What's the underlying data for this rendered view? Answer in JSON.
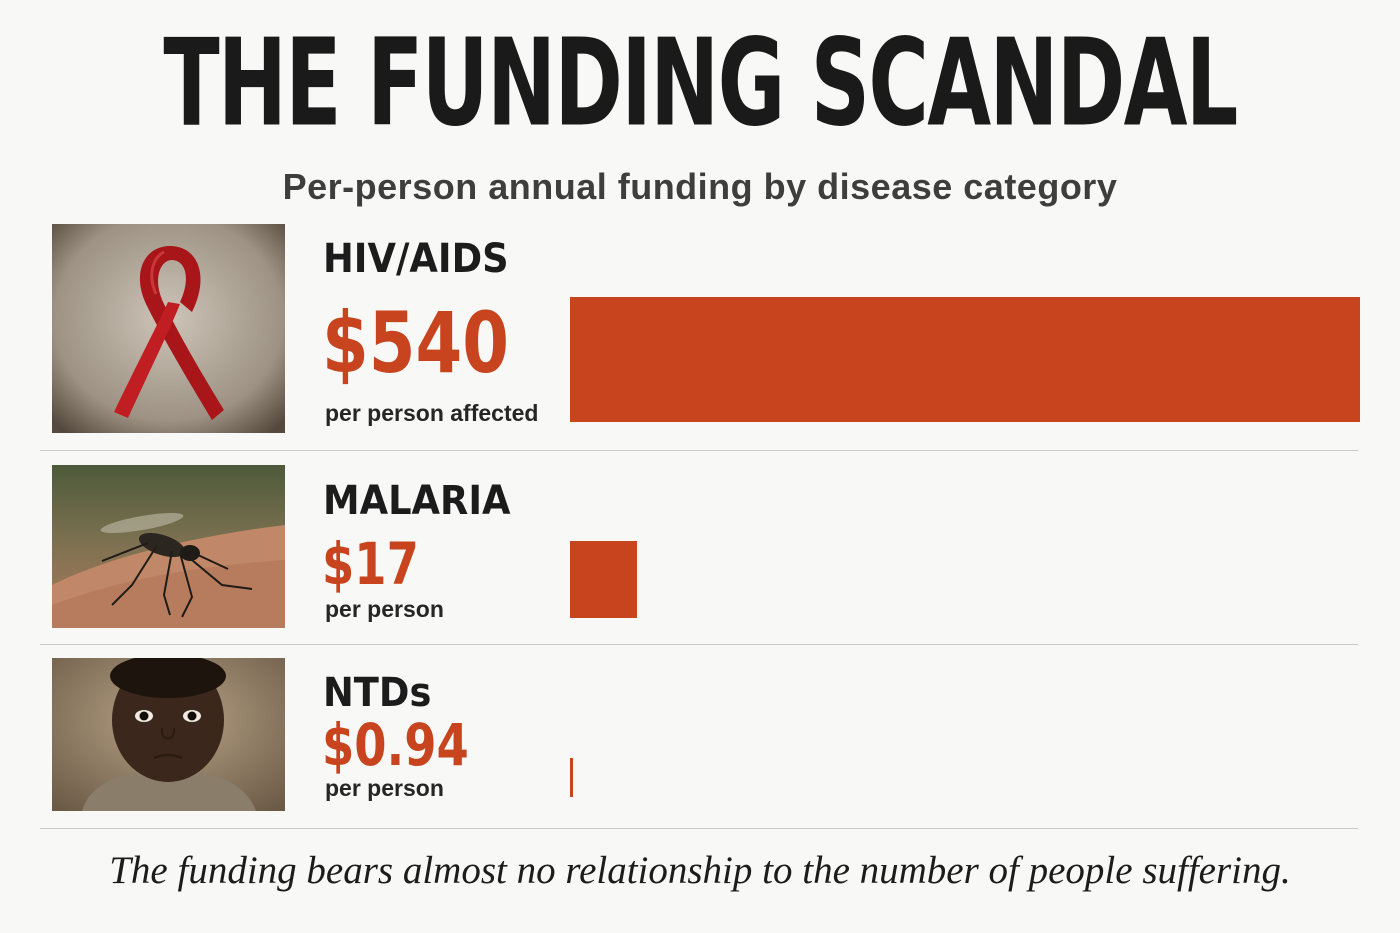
{
  "title": "THE FUNDING SCANDAL",
  "subtitle": "Per-person annual funding by disease category",
  "caption": "The funding bears almost no relationship to the number of people suffering.",
  "colors": {
    "bar": "#c8441e",
    "value_text": "#c8441e"
  },
  "chart_data": {
    "type": "bar",
    "orientation": "horizontal",
    "categories": [
      "HIV/AIDS",
      "MALARIA",
      "NTDs"
    ],
    "values": [
      540,
      17,
      0.94
    ],
    "value_labels": [
      "$540",
      "$17",
      "$0.94"
    ],
    "unit_labels": [
      "per person affected",
      "per person",
      "per person"
    ],
    "images": [
      "red-ribbon-photo",
      "mosquito-photo",
      "child-portrait-photo"
    ],
    "title": "THE FUNDING SCANDAL",
    "subtitle": "Per-person annual funding by disease category",
    "xlim": [
      0,
      540
    ],
    "grid": false,
    "legend": "none"
  }
}
